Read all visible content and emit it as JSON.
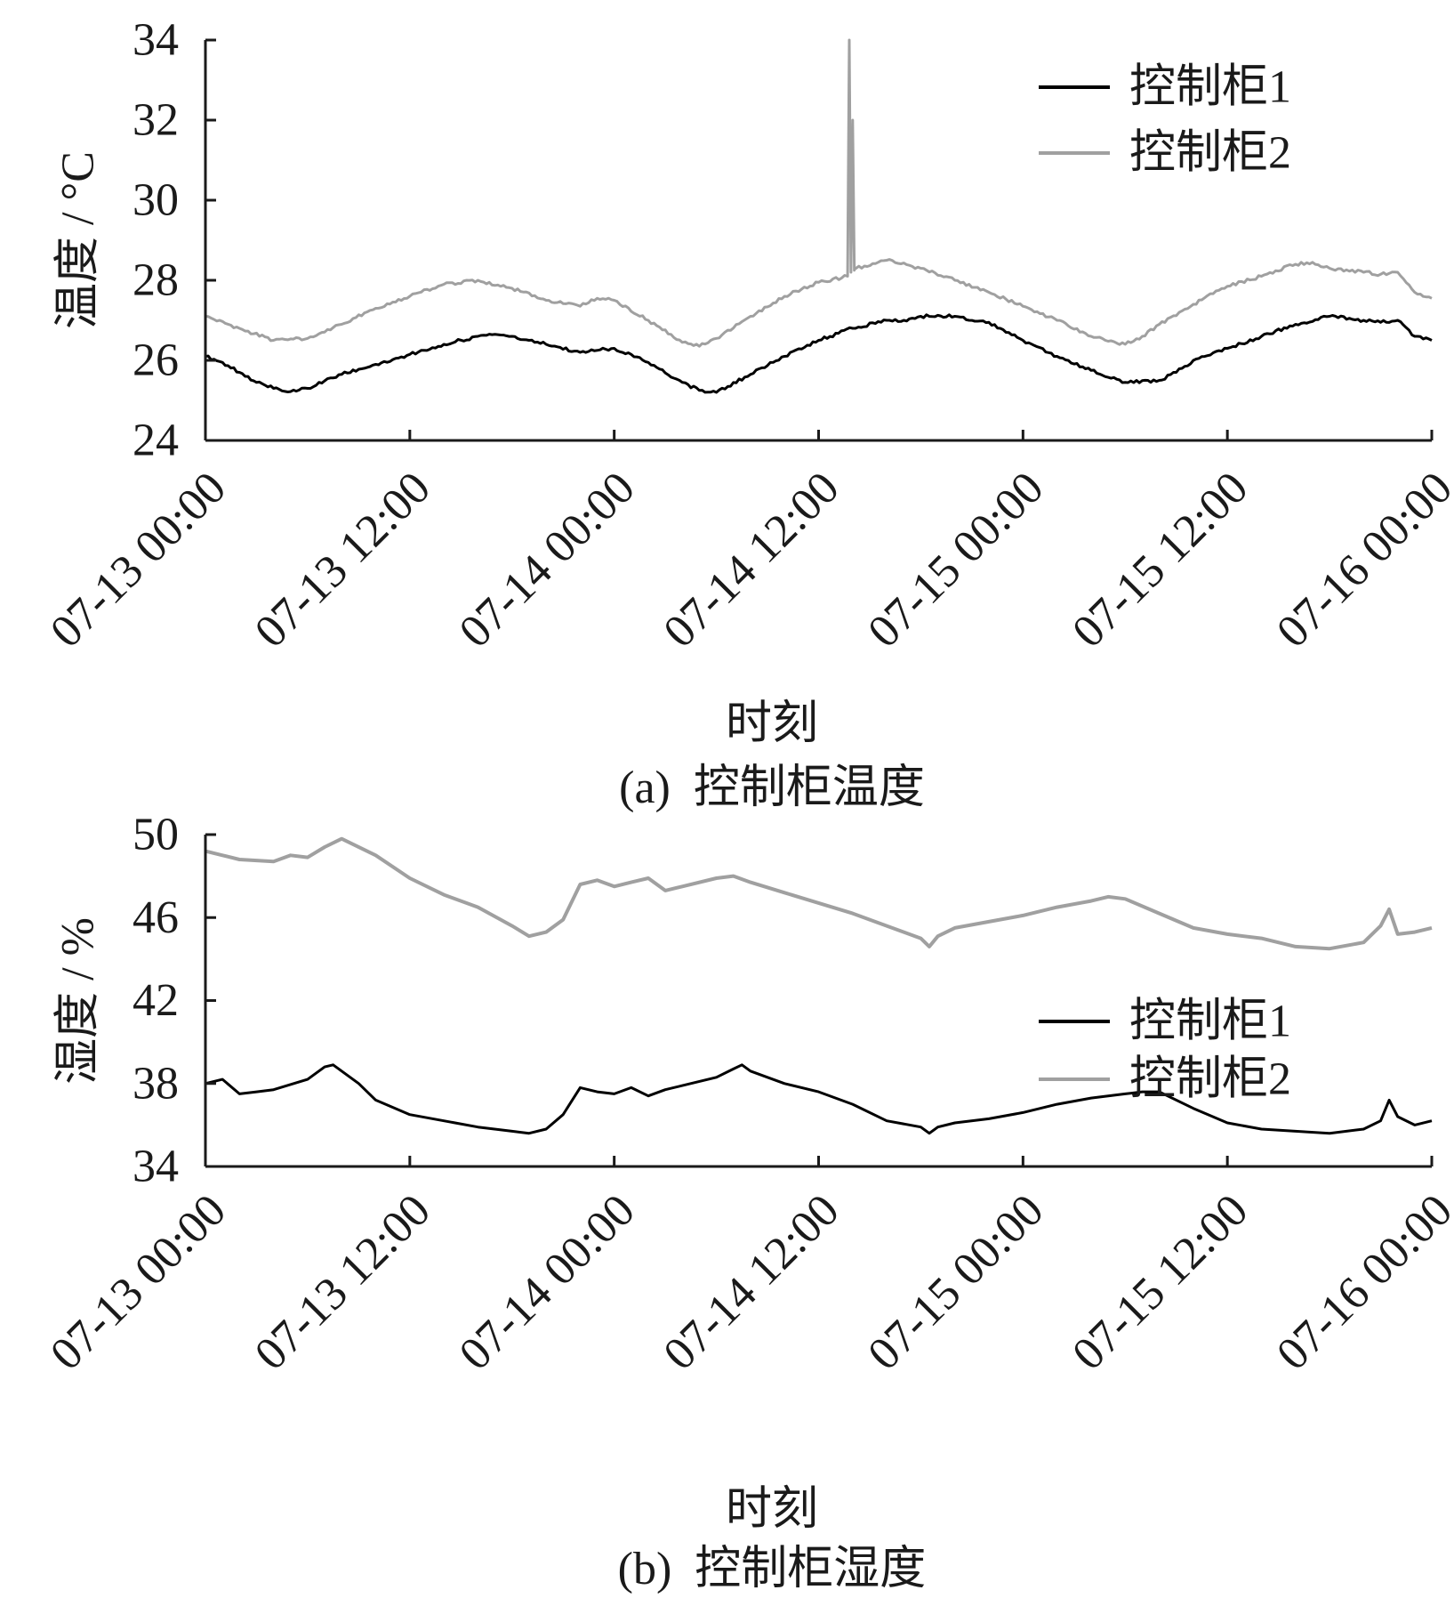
{
  "chart_data": [
    {
      "panel_id": "a",
      "type": "line",
      "caption": "(a)  控制柜温度",
      "xlabel": "时刻",
      "ylabel": "温度 / °C",
      "x_ticks": [
        "07-13 00:00",
        "07-13 12:00",
        "07-14 00:00",
        "07-14 12:00",
        "07-15 00:00",
        "07-15 12:00",
        "07-16 00:00"
      ],
      "xlim_hours": [
        0,
        72
      ],
      "ylim": [
        24,
        34
      ],
      "y_ticks": [
        "24",
        "26",
        "28",
        "30",
        "32",
        "34"
      ],
      "legend_position": "top-right",
      "grid": false,
      "series": [
        {
          "name": "控制柜1",
          "color": "#000000",
          "x_hours": [
            0,
            1,
            2,
            3,
            4,
            5,
            6,
            8,
            10,
            12,
            14,
            16,
            17,
            18,
            20,
            22,
            23,
            24,
            25,
            26,
            28,
            29,
            30,
            32,
            34,
            36,
            38,
            40,
            41,
            42,
            44,
            46,
            48,
            50,
            52,
            54,
            56,
            57,
            58,
            60,
            62,
            64,
            66,
            68,
            69,
            70,
            71,
            72
          ],
          "values": [
            26.1,
            25.95,
            25.7,
            25.45,
            25.3,
            25.22,
            25.3,
            25.65,
            25.9,
            26.15,
            26.4,
            26.6,
            26.65,
            26.6,
            26.4,
            26.2,
            26.25,
            26.3,
            26.15,
            25.95,
            25.45,
            25.25,
            25.2,
            25.65,
            26.1,
            26.5,
            26.8,
            27.0,
            27.0,
            27.1,
            27.1,
            26.95,
            26.5,
            26.1,
            25.75,
            25.45,
            25.5,
            25.7,
            26.0,
            26.3,
            26.6,
            26.9,
            27.1,
            27.0,
            26.95,
            27.0,
            26.6,
            26.5
          ]
        },
        {
          "name": "控制柜2",
          "color": "#a0a0a0",
          "x_hours": [
            0,
            2,
            4,
            6,
            8,
            10,
            12,
            14,
            16,
            18,
            20,
            22,
            23,
            24,
            26,
            28,
            29,
            30,
            32,
            34,
            36,
            37.7,
            37.8,
            37.9,
            38.0,
            38.1,
            38.2,
            40,
            42,
            44,
            46,
            48,
            50,
            52,
            54,
            55,
            56,
            58,
            60,
            62,
            64,
            65,
            66,
            68,
            69,
            70,
            71,
            72
          ],
          "values": [
            27.1,
            26.8,
            26.5,
            26.55,
            26.9,
            27.3,
            27.6,
            27.9,
            28.0,
            27.8,
            27.5,
            27.35,
            27.55,
            27.5,
            27.0,
            26.45,
            26.35,
            26.55,
            27.1,
            27.6,
            27.95,
            28.1,
            34.0,
            28.2,
            32.0,
            28.25,
            28.3,
            28.5,
            28.3,
            28.0,
            27.7,
            27.35,
            27.0,
            26.6,
            26.4,
            26.6,
            26.9,
            27.4,
            27.85,
            28.1,
            28.4,
            28.45,
            28.3,
            28.2,
            28.15,
            28.2,
            27.7,
            27.55
          ]
        }
      ]
    },
    {
      "panel_id": "b",
      "type": "line",
      "caption": "(b)  控制柜湿度",
      "xlabel": "时刻",
      "ylabel": "湿度 / %",
      "x_ticks": [
        "07-13 00:00",
        "07-13 12:00",
        "07-14 00:00",
        "07-14 12:00",
        "07-15 00:00",
        "07-15 12:00",
        "07-16 00:00"
      ],
      "xlim_hours": [
        0,
        72
      ],
      "ylim": [
        34,
        50
      ],
      "y_ticks": [
        "34",
        "38",
        "42",
        "46",
        "50"
      ],
      "legend_position": "middle-right",
      "grid": false,
      "series": [
        {
          "name": "控制柜1",
          "color": "#000000",
          "x_hours": [
            0,
            1,
            2,
            3,
            4,
            6,
            7,
            7.5,
            8,
            9,
            10,
            12,
            14,
            16,
            18,
            19,
            20,
            21,
            22,
            23,
            24,
            25,
            26,
            27,
            28,
            30,
            31,
            31.5,
            32,
            33,
            34,
            36,
            38,
            40,
            42,
            42.5,
            43,
            44,
            46,
            48,
            50,
            52,
            54,
            55,
            56,
            58,
            60,
            62,
            64,
            66,
            68,
            69,
            69.5,
            70,
            71,
            72
          ],
          "values": [
            38.0,
            38.2,
            37.5,
            37.6,
            37.7,
            38.2,
            38.8,
            38.9,
            38.6,
            38.0,
            37.2,
            36.5,
            36.2,
            35.9,
            35.7,
            35.6,
            35.8,
            36.5,
            37.8,
            37.6,
            37.5,
            37.8,
            37.4,
            37.7,
            37.9,
            38.3,
            38.7,
            38.9,
            38.6,
            38.3,
            38.0,
            37.6,
            37.0,
            36.2,
            35.9,
            35.6,
            35.9,
            36.1,
            36.3,
            36.6,
            37.0,
            37.3,
            37.5,
            37.6,
            37.6,
            36.8,
            36.1,
            35.8,
            35.7,
            35.6,
            35.8,
            36.2,
            37.2,
            36.4,
            36.0,
            36.2
          ]
        },
        {
          "name": "控制柜2",
          "color": "#a0a0a0",
          "x_hours": [
            0,
            1,
            2,
            4,
            5,
            6,
            7,
            8,
            10,
            12,
            14,
            16,
            18,
            19,
            20,
            21,
            22,
            23,
            24,
            25,
            26,
            27,
            28,
            30,
            31,
            32,
            34,
            36,
            38,
            40,
            42,
            42.5,
            43,
            44,
            46,
            48,
            50,
            52,
            53,
            54,
            56,
            58,
            60,
            62,
            64,
            66,
            68,
            69,
            69.5,
            70,
            71,
            72
          ],
          "values": [
            49.2,
            49.0,
            48.8,
            48.7,
            49.0,
            48.9,
            49.4,
            49.8,
            49.0,
            47.9,
            47.1,
            46.5,
            45.6,
            45.1,
            45.3,
            45.9,
            47.6,
            47.8,
            47.5,
            47.7,
            47.9,
            47.3,
            47.5,
            47.9,
            48.0,
            47.7,
            47.2,
            46.7,
            46.2,
            45.6,
            45.0,
            44.6,
            45.1,
            45.5,
            45.8,
            46.1,
            46.5,
            46.8,
            47.0,
            46.9,
            46.2,
            45.5,
            45.2,
            45.0,
            44.6,
            44.5,
            44.8,
            45.6,
            46.4,
            45.2,
            45.3,
            45.5
          ]
        }
      ]
    }
  ]
}
